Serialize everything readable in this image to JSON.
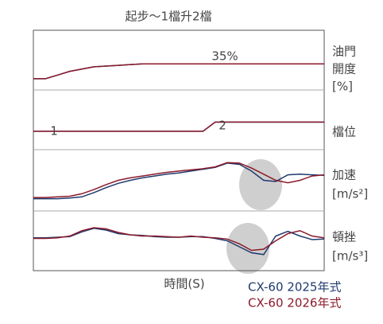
{
  "chart_data": {
    "type": "line",
    "title": "起步～1檔升2檔",
    "xlabel": "時間(S)",
    "x": [
      0,
      1,
      2,
      3,
      4,
      5,
      6,
      7,
      8,
      9,
      10,
      11,
      12,
      13,
      14,
      15,
      16,
      17,
      18,
      19,
      20,
      21,
      22,
      23,
      24
    ],
    "xlim": [
      0,
      24
    ],
    "series": [
      {
        "name": "CX-60 2025年式",
        "color": "#1f3a6e"
      },
      {
        "name": "CX-60 2026年式",
        "color": "#8b1a2b"
      }
    ],
    "panels": [
      {
        "label": [
          "油門",
          "開度",
          "[%]"
        ],
        "ylim": [
          0,
          80
        ],
        "annotations": [
          "35%"
        ],
        "values": [
          [
            15,
            15,
            20,
            25,
            28,
            31,
            32,
            33,
            34,
            35,
            35,
            35,
            35,
            35,
            35,
            35,
            35,
            35,
            35,
            35,
            35,
            35,
            35,
            35,
            35
          ],
          [
            15,
            15,
            20,
            25,
            28,
            31,
            32,
            33,
            34,
            35,
            35,
            35,
            35,
            35,
            35,
            35,
            35,
            35,
            35,
            35,
            35,
            35,
            35,
            35,
            35
          ]
        ]
      },
      {
        "label": [
          "檔位"
        ],
        "ylim": [
          -1,
          5.5
        ],
        "annotations": [
          "1",
          "2"
        ],
        "values": [
          [
            1,
            1,
            1,
            1,
            1,
            1,
            1,
            1,
            1,
            1,
            1,
            1,
            1,
            1,
            1,
            2,
            2,
            2,
            2,
            2,
            2,
            2,
            2,
            2,
            2
          ],
          [
            1,
            1,
            1,
            1,
            1,
            1,
            1,
            1,
            1,
            1,
            1,
            1,
            1,
            1,
            1,
            2,
            2,
            2,
            2,
            2,
            2,
            2,
            2,
            2,
            2
          ]
        ]
      },
      {
        "label": [
          "加速",
          "[m/s²]"
        ],
        "ylim": [
          0,
          10
        ],
        "values": [
          [
            2.0,
            2.0,
            2.0,
            2.1,
            2.3,
            3.0,
            3.8,
            4.5,
            5.0,
            5.4,
            5.7,
            6.0,
            6.2,
            6.5,
            6.8,
            7.1,
            7.8,
            7.6,
            6.5,
            5.0,
            4.8,
            5.9,
            6.0,
            5.9,
            5.8
          ],
          [
            2.2,
            2.2,
            2.3,
            2.4,
            2.8,
            3.5,
            4.3,
            5.0,
            5.4,
            5.7,
            6.0,
            6.3,
            6.5,
            6.7,
            6.9,
            7.2,
            7.9,
            7.8,
            7.0,
            6.0,
            5.0,
            4.6,
            5.0,
            5.7,
            5.9
          ]
        ]
      },
      {
        "label": [
          "頓挫",
          "[m/s³]"
        ],
        "ylim": [
          -5,
          5
        ],
        "values": [
          [
            0.5,
            0.5,
            0.6,
            0.7,
            1.5,
            2.1,
            1.8,
            1.2,
            1.0,
            0.9,
            0.7,
            0.6,
            0.6,
            0.7,
            0.7,
            0.4,
            0.0,
            -1.0,
            -2.0,
            -2.3,
            0.8,
            1.6,
            0.8,
            0.2,
            0.3
          ],
          [
            0.4,
            0.4,
            0.5,
            0.8,
            1.7,
            2.2,
            2.0,
            1.4,
            1.0,
            0.8,
            0.8,
            0.7,
            0.6,
            0.8,
            0.6,
            0.5,
            0.3,
            -0.5,
            -1.6,
            -1.4,
            0.0,
            1.2,
            1.7,
            0.8,
            0.5
          ]
        ]
      }
    ]
  }
}
